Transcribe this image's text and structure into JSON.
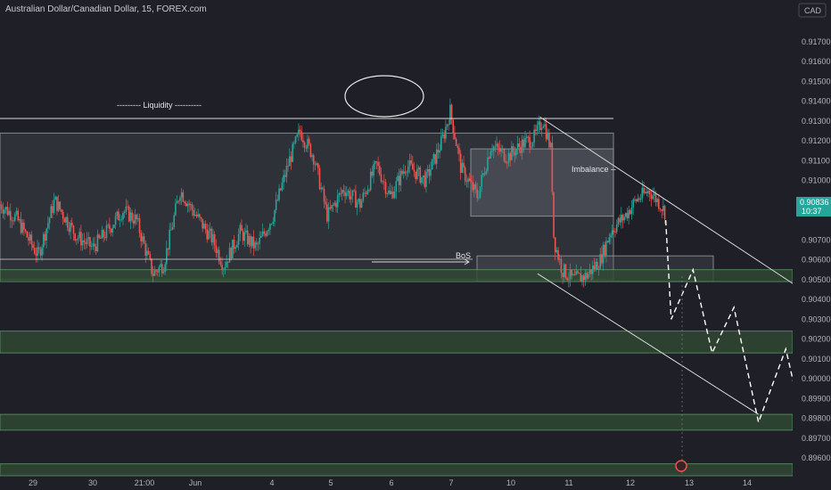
{
  "header": {
    "title": "Australian Dollar/Canadian Dollar, 15, FOREX.com"
  },
  "currency_badge": "CAD",
  "price_label": {
    "price": "0.90836",
    "countdown": "10:37"
  },
  "annotations": {
    "liquidity": "--------- Liquidity ----------",
    "imbalance": "Imbalance --",
    "bos": "BoS"
  },
  "colors": {
    "background": "#1f2027",
    "bull_candle": "#26a69a",
    "bear_candle": "#ef5350",
    "zone_fill": "#2f4a33",
    "zone_border": "#5c9a63",
    "accent": "#26a69a",
    "axis_text": "#b2b5be"
  },
  "chart_data": {
    "type": "candlestick",
    "title": "Australian Dollar/Canadian Dollar, 15, FOREX.com",
    "y_axis": {
      "ticks": [
        "0.91700",
        "0.91600",
        "0.91500",
        "0.91400",
        "0.91300",
        "0.91200",
        "0.91100",
        "0.91000",
        "0.90900",
        "0.90700",
        "0.90600",
        "0.90500",
        "0.90400",
        "0.90300",
        "0.90200",
        "0.90100",
        "0.90000",
        "0.89900",
        "0.89800",
        "0.89700",
        "0.89600"
      ],
      "range": [
        0.8955,
        0.9175
      ],
      "unit": "CAD"
    },
    "x_axis": {
      "ticks": [
        "29",
        "30",
        "21:00",
        "Jun",
        "4",
        "5",
        "6",
        "7",
        "10",
        "11",
        "12",
        "13",
        "14"
      ]
    },
    "last_price": 0.90836,
    "price_path": [
      [
        0,
        0.9088
      ],
      [
        0.6,
        0.9081
      ],
      [
        1.4,
        0.9062
      ],
      [
        2.0,
        0.909
      ],
      [
        2.8,
        0.9072
      ],
      [
        3.4,
        0.9066
      ],
      [
        3.9,
        0.9074
      ],
      [
        4.5,
        0.9085
      ],
      [
        5.0,
        0.908
      ],
      [
        5.6,
        0.9053
      ],
      [
        6.0,
        0.9058
      ],
      [
        6.6,
        0.9095
      ],
      [
        7.2,
        0.9082
      ],
      [
        7.8,
        0.907
      ],
      [
        8.2,
        0.9057
      ],
      [
        8.8,
        0.9074
      ],
      [
        9.4,
        0.9066
      ],
      [
        10.0,
        0.9082
      ],
      [
        10.6,
        0.911
      ],
      [
        11.0,
        0.9125
      ],
      [
        11.5,
        0.9112
      ],
      [
        12.0,
        0.9082
      ],
      [
        12.6,
        0.9096
      ],
      [
        13.2,
        0.9088
      ],
      [
        13.8,
        0.9108
      ],
      [
        14.3,
        0.9092
      ],
      [
        14.9,
        0.9108
      ],
      [
        15.6,
        0.91
      ],
      [
        16.2,
        0.912
      ],
      [
        16.5,
        0.9135
      ],
      [
        16.9,
        0.9106
      ],
      [
        17.5,
        0.9092
      ],
      [
        18.0,
        0.9118
      ],
      [
        18.6,
        0.9112
      ],
      [
        19.1,
        0.9118
      ],
      [
        19.6,
        0.9122
      ],
      [
        19.9,
        0.9131
      ],
      [
        20.2,
        0.9115
      ],
      [
        20.3,
        0.907
      ],
      [
        20.6,
        0.9055
      ],
      [
        21.0,
        0.905
      ],
      [
        21.5,
        0.9052
      ],
      [
        22.0,
        0.906
      ],
      [
        22.4,
        0.9075
      ],
      [
        22.9,
        0.9082
      ],
      [
        23.3,
        0.909
      ],
      [
        23.8,
        0.9095
      ],
      [
        24.2,
        0.9088
      ],
      [
        24.4,
        0.90836
      ]
    ],
    "zones": [
      {
        "type": "range",
        "from": 0.905,
        "to": 0.9124
      },
      {
        "type": "imbalance",
        "from": 0.9082,
        "to": 0.9116
      },
      {
        "type": "range",
        "from": 0.9049,
        "to": 0.9062
      },
      {
        "type": "support",
        "from": 0.9049,
        "to": 0.9055
      },
      {
        "type": "support",
        "from": 0.9013,
        "to": 0.9024
      },
      {
        "type": "support",
        "from": 0.8974,
        "to": 0.8982
      },
      {
        "type": "support",
        "from": 0.8951,
        "to": 0.8957
      }
    ],
    "projection": [
      [
        24.4,
        0.908
      ],
      [
        24.6,
        0.903
      ],
      [
        25.4,
        0.9055
      ],
      [
        26.1,
        0.9013
      ],
      [
        26.9,
        0.9036
      ],
      [
        27.8,
        0.8978
      ],
      [
        28.8,
        0.9015
      ],
      [
        29.8,
        0.8955
      ],
      [
        30.2,
        0.8958
      ]
    ],
    "channel": [
      {
        "x1": 19.8,
        "y1": 0.9132,
        "x2": 29.5,
        "y2": 0.9044
      },
      {
        "x1": 19.7,
        "y1": 0.9053,
        "x2": 27.8,
        "y2": 0.8982
      }
    ]
  }
}
